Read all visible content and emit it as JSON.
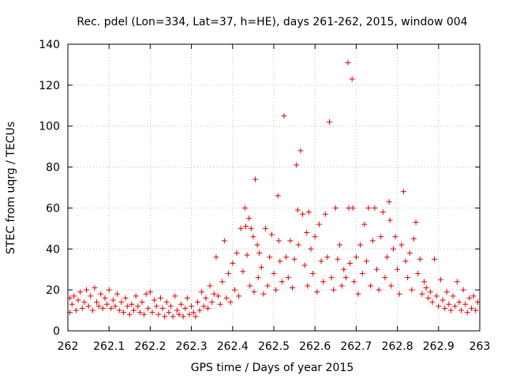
{
  "chart_data": {
    "type": "scatter",
    "title": "Rec. pdel (Lon=334, Lat=37, h=HE), days 261-262, 2015, window 004",
    "xlabel": "GPS time / Days of year 2015",
    "ylabel": "STEC from uqrg / TECUs",
    "xlim": [
      262,
      263
    ],
    "ylim": [
      0,
      140
    ],
    "xticks": [
      262,
      262.1,
      262.2,
      262.3,
      262.4,
      262.5,
      262.6,
      262.7,
      262.8,
      262.9,
      263
    ],
    "xtick_labels": [
      "262",
      "262.1",
      "262.2",
      "262.3",
      "262.4",
      "262.5",
      "262.6",
      "262.7",
      "262.8",
      "262.9",
      "263"
    ],
    "yticks": [
      0,
      20,
      40,
      60,
      80,
      100,
      120,
      140
    ],
    "ytick_labels": [
      "0",
      "20",
      "40",
      "60",
      "80",
      "100",
      "120",
      "140"
    ],
    "grid": true,
    "marker": "+",
    "marker_color": "#e00000",
    "series": [
      {
        "name": "STEC",
        "points": [
          [
            262.005,
            16
          ],
          [
            262.005,
            9
          ],
          [
            262.01,
            13
          ],
          [
            262.015,
            17
          ],
          [
            262.02,
            10
          ],
          [
            262.025,
            15
          ],
          [
            262.03,
            19
          ],
          [
            262.035,
            11
          ],
          [
            262.04,
            14
          ],
          [
            262.045,
            20
          ],
          [
            262.05,
            12
          ],
          [
            262.055,
            17
          ],
          [
            262.06,
            10
          ],
          [
            262.065,
            21
          ],
          [
            262.07,
            14
          ],
          [
            262.075,
            12
          ],
          [
            262.08,
            18
          ],
          [
            262.085,
            11
          ],
          [
            262.09,
            16
          ],
          [
            262.095,
            13
          ],
          [
            262.1,
            20
          ],
          [
            262.105,
            11
          ],
          [
            262.11,
            15
          ],
          [
            262.115,
            12
          ],
          [
            262.12,
            18
          ],
          [
            262.125,
            10
          ],
          [
            262.13,
            14
          ],
          [
            262.135,
            9
          ],
          [
            262.14,
            16
          ],
          [
            262.145,
            12
          ],
          [
            262.15,
            8
          ],
          [
            262.155,
            13
          ],
          [
            262.16,
            10
          ],
          [
            262.165,
            17
          ],
          [
            262.17,
            12
          ],
          [
            262.175,
            9
          ],
          [
            262.18,
            14
          ],
          [
            262.185,
            8
          ],
          [
            262.19,
            18
          ],
          [
            262.195,
            11
          ],
          [
            262.2,
            19
          ],
          [
            262.205,
            9
          ],
          [
            262.21,
            15
          ],
          [
            262.215,
            12
          ],
          [
            262.22,
            8
          ],
          [
            262.225,
            16
          ],
          [
            262.23,
            11
          ],
          [
            262.235,
            7
          ],
          [
            262.24,
            14
          ],
          [
            262.245,
            9
          ],
          [
            262.25,
            12
          ],
          [
            262.255,
            7
          ],
          [
            262.26,
            17
          ],
          [
            262.265,
            10
          ],
          [
            262.27,
            8
          ],
          [
            262.275,
            13
          ],
          [
            262.28,
            7
          ],
          [
            262.285,
            11
          ],
          [
            262.29,
            16
          ],
          [
            262.295,
            8
          ],
          [
            262.3,
            12
          ],
          [
            262.305,
            9
          ],
          [
            262.31,
            7
          ],
          [
            262.315,
            14
          ],
          [
            262.32,
            10
          ],
          [
            262.325,
            19
          ],
          [
            262.33,
            12
          ],
          [
            262.335,
            16
          ],
          [
            262.34,
            11
          ],
          [
            262.345,
            22
          ],
          [
            262.35,
            14
          ],
          [
            262.355,
            18
          ],
          [
            262.36,
            36
          ],
          [
            262.365,
            17
          ],
          [
            262.37,
            13
          ],
          [
            262.375,
            24
          ],
          [
            262.38,
            44
          ],
          [
            262.385,
            16
          ],
          [
            262.39,
            28
          ],
          [
            262.395,
            14
          ],
          [
            262.4,
            33
          ],
          [
            262.405,
            20
          ],
          [
            262.41,
            38
          ],
          [
            262.415,
            17
          ],
          [
            262.42,
            50
          ],
          [
            262.425,
            29
          ],
          [
            262.43,
            60
          ],
          [
            262.432,
            51
          ],
          [
            262.435,
            37
          ],
          [
            262.44,
            55
          ],
          [
            262.442,
            22
          ],
          [
            262.445,
            50
          ],
          [
            262.45,
            46
          ],
          [
            262.452,
            19
          ],
          [
            262.455,
            74
          ],
          [
            262.46,
            42
          ],
          [
            262.462,
            26
          ],
          [
            262.465,
            38
          ],
          [
            262.47,
            31
          ],
          [
            262.475,
            18
          ],
          [
            262.48,
            50
          ],
          [
            262.485,
            22
          ],
          [
            262.49,
            36
          ],
          [
            262.495,
            47
          ],
          [
            262.5,
            28
          ],
          [
            262.505,
            20
          ],
          [
            262.51,
            66
          ],
          [
            262.512,
            44
          ],
          [
            262.515,
            34
          ],
          [
            262.52,
            24
          ],
          [
            262.525,
            105
          ],
          [
            262.53,
            36
          ],
          [
            262.535,
            26
          ],
          [
            262.54,
            44
          ],
          [
            262.545,
            21
          ],
          [
            262.55,
            35
          ],
          [
            262.555,
            81
          ],
          [
            262.558,
            59
          ],
          [
            262.56,
            42
          ],
          [
            262.565,
            88
          ],
          [
            262.57,
            57
          ],
          [
            262.575,
            32
          ],
          [
            262.58,
            48
          ],
          [
            262.582,
            22
          ],
          [
            262.585,
            58
          ],
          [
            262.59,
            40
          ],
          [
            262.595,
            28
          ],
          [
            262.6,
            46
          ],
          [
            262.605,
            19
          ],
          [
            262.61,
            52
          ],
          [
            262.615,
            34
          ],
          [
            262.62,
            24
          ],
          [
            262.625,
            57
          ],
          [
            262.63,
            36
          ],
          [
            262.635,
            102
          ],
          [
            262.64,
            26
          ],
          [
            262.645,
            20
          ],
          [
            262.65,
            60
          ],
          [
            262.655,
            35
          ],
          [
            262.66,
            42
          ],
          [
            262.665,
            22
          ],
          [
            262.67,
            30
          ],
          [
            262.675,
            26
          ],
          [
            262.68,
            131
          ],
          [
            262.682,
            60
          ],
          [
            262.685,
            33
          ],
          [
            262.69,
            123
          ],
          [
            262.692,
            60
          ],
          [
            262.695,
            24
          ],
          [
            262.7,
            36
          ],
          [
            262.705,
            18
          ],
          [
            262.71,
            42
          ],
          [
            262.715,
            28
          ],
          [
            262.72,
            52
          ],
          [
            262.725,
            34
          ],
          [
            262.73,
            60
          ],
          [
            262.735,
            22
          ],
          [
            262.74,
            44
          ],
          [
            262.745,
            60
          ],
          [
            262.75,
            30
          ],
          [
            262.755,
            20
          ],
          [
            262.76,
            46
          ],
          [
            262.765,
            58
          ],
          [
            262.77,
            26
          ],
          [
            262.775,
            36
          ],
          [
            262.78,
            63
          ],
          [
            262.782,
            54
          ],
          [
            262.785,
            22
          ],
          [
            262.79,
            40
          ],
          [
            262.795,
            46
          ],
          [
            262.8,
            30
          ],
          [
            262.805,
            18
          ],
          [
            262.81,
            42
          ],
          [
            262.815,
            68
          ],
          [
            262.82,
            34
          ],
          [
            262.825,
            26
          ],
          [
            262.83,
            38
          ],
          [
            262.835,
            20
          ],
          [
            262.84,
            45
          ],
          [
            262.845,
            53
          ],
          [
            262.85,
            28
          ],
          [
            262.855,
            35
          ],
          [
            262.86,
            18
          ],
          [
            262.865,
            24
          ],
          [
            262.87,
            21
          ],
          [
            262.875,
            16
          ],
          [
            262.88,
            19
          ],
          [
            262.885,
            14
          ],
          [
            262.89,
            35
          ],
          [
            262.895,
            17
          ],
          [
            262.9,
            12
          ],
          [
            262.905,
            25
          ],
          [
            262.91,
            15
          ],
          [
            262.915,
            11
          ],
          [
            262.92,
            19
          ],
          [
            262.925,
            13
          ],
          [
            262.93,
            10
          ],
          [
            262.935,
            17
          ],
          [
            262.94,
            12
          ],
          [
            262.945,
            24
          ],
          [
            262.95,
            14
          ],
          [
            262.955,
            10
          ],
          [
            262.96,
            20
          ],
          [
            262.965,
            13
          ],
          [
            262.97,
            9
          ],
          [
            262.975,
            16
          ],
          [
            262.98,
            11
          ],
          [
            262.985,
            17
          ],
          [
            262.99,
            10
          ],
          [
            262.995,
            14
          ]
        ]
      }
    ]
  }
}
